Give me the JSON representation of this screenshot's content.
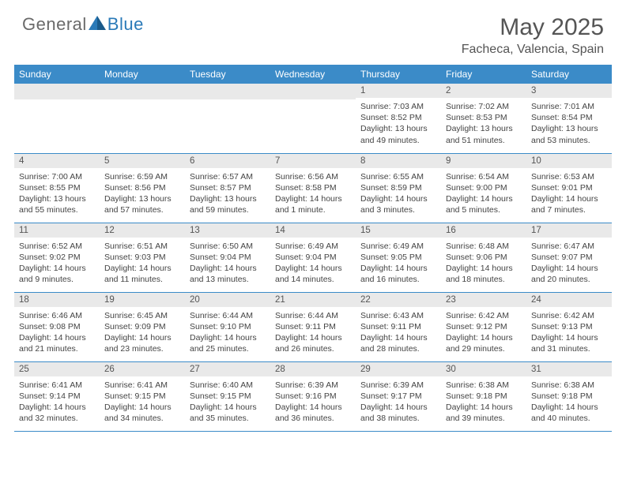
{
  "logo": {
    "general": "General",
    "blue": "Blue"
  },
  "title": "May 2025",
  "subtitle": "Facheca, Valencia, Spain",
  "colors": {
    "header_bg": "#3b8bc8",
    "header_text": "#ffffff",
    "day_bar_bg": "#e9e9e9",
    "border": "#3b8bc8",
    "body_text": "#444444",
    "title_text": "#555555",
    "logo_gray": "#6a6a6a",
    "logo_blue": "#2a7ab8"
  },
  "dow": [
    "Sunday",
    "Monday",
    "Tuesday",
    "Wednesday",
    "Thursday",
    "Friday",
    "Saturday"
  ],
  "weeks": [
    [
      null,
      null,
      null,
      null,
      {
        "n": "1",
        "sr": "7:03 AM",
        "ss": "8:52 PM",
        "dl": "13 hours and 49 minutes."
      },
      {
        "n": "2",
        "sr": "7:02 AM",
        "ss": "8:53 PM",
        "dl": "13 hours and 51 minutes."
      },
      {
        "n": "3",
        "sr": "7:01 AM",
        "ss": "8:54 PM",
        "dl": "13 hours and 53 minutes."
      }
    ],
    [
      {
        "n": "4",
        "sr": "7:00 AM",
        "ss": "8:55 PM",
        "dl": "13 hours and 55 minutes."
      },
      {
        "n": "5",
        "sr": "6:59 AM",
        "ss": "8:56 PM",
        "dl": "13 hours and 57 minutes."
      },
      {
        "n": "6",
        "sr": "6:57 AM",
        "ss": "8:57 PM",
        "dl": "13 hours and 59 minutes."
      },
      {
        "n": "7",
        "sr": "6:56 AM",
        "ss": "8:58 PM",
        "dl": "14 hours and 1 minute."
      },
      {
        "n": "8",
        "sr": "6:55 AM",
        "ss": "8:59 PM",
        "dl": "14 hours and 3 minutes."
      },
      {
        "n": "9",
        "sr": "6:54 AM",
        "ss": "9:00 PM",
        "dl": "14 hours and 5 minutes."
      },
      {
        "n": "10",
        "sr": "6:53 AM",
        "ss": "9:01 PM",
        "dl": "14 hours and 7 minutes."
      }
    ],
    [
      {
        "n": "11",
        "sr": "6:52 AM",
        "ss": "9:02 PM",
        "dl": "14 hours and 9 minutes."
      },
      {
        "n": "12",
        "sr": "6:51 AM",
        "ss": "9:03 PM",
        "dl": "14 hours and 11 minutes."
      },
      {
        "n": "13",
        "sr": "6:50 AM",
        "ss": "9:04 PM",
        "dl": "14 hours and 13 minutes."
      },
      {
        "n": "14",
        "sr": "6:49 AM",
        "ss": "9:04 PM",
        "dl": "14 hours and 14 minutes."
      },
      {
        "n": "15",
        "sr": "6:49 AM",
        "ss": "9:05 PM",
        "dl": "14 hours and 16 minutes."
      },
      {
        "n": "16",
        "sr": "6:48 AM",
        "ss": "9:06 PM",
        "dl": "14 hours and 18 minutes."
      },
      {
        "n": "17",
        "sr": "6:47 AM",
        "ss": "9:07 PM",
        "dl": "14 hours and 20 minutes."
      }
    ],
    [
      {
        "n": "18",
        "sr": "6:46 AM",
        "ss": "9:08 PM",
        "dl": "14 hours and 21 minutes."
      },
      {
        "n": "19",
        "sr": "6:45 AM",
        "ss": "9:09 PM",
        "dl": "14 hours and 23 minutes."
      },
      {
        "n": "20",
        "sr": "6:44 AM",
        "ss": "9:10 PM",
        "dl": "14 hours and 25 minutes."
      },
      {
        "n": "21",
        "sr": "6:44 AM",
        "ss": "9:11 PM",
        "dl": "14 hours and 26 minutes."
      },
      {
        "n": "22",
        "sr": "6:43 AM",
        "ss": "9:11 PM",
        "dl": "14 hours and 28 minutes."
      },
      {
        "n": "23",
        "sr": "6:42 AM",
        "ss": "9:12 PM",
        "dl": "14 hours and 29 minutes."
      },
      {
        "n": "24",
        "sr": "6:42 AM",
        "ss": "9:13 PM",
        "dl": "14 hours and 31 minutes."
      }
    ],
    [
      {
        "n": "25",
        "sr": "6:41 AM",
        "ss": "9:14 PM",
        "dl": "14 hours and 32 minutes."
      },
      {
        "n": "26",
        "sr": "6:41 AM",
        "ss": "9:15 PM",
        "dl": "14 hours and 34 minutes."
      },
      {
        "n": "27",
        "sr": "6:40 AM",
        "ss": "9:15 PM",
        "dl": "14 hours and 35 minutes."
      },
      {
        "n": "28",
        "sr": "6:39 AM",
        "ss": "9:16 PM",
        "dl": "14 hours and 36 minutes."
      },
      {
        "n": "29",
        "sr": "6:39 AM",
        "ss": "9:17 PM",
        "dl": "14 hours and 38 minutes."
      },
      {
        "n": "30",
        "sr": "6:38 AM",
        "ss": "9:18 PM",
        "dl": "14 hours and 39 minutes."
      },
      {
        "n": "31",
        "sr": "6:38 AM",
        "ss": "9:18 PM",
        "dl": "14 hours and 40 minutes."
      }
    ]
  ],
  "labels": {
    "sunrise": "Sunrise: ",
    "sunset": "Sunset: ",
    "daylight": "Daylight: "
  }
}
